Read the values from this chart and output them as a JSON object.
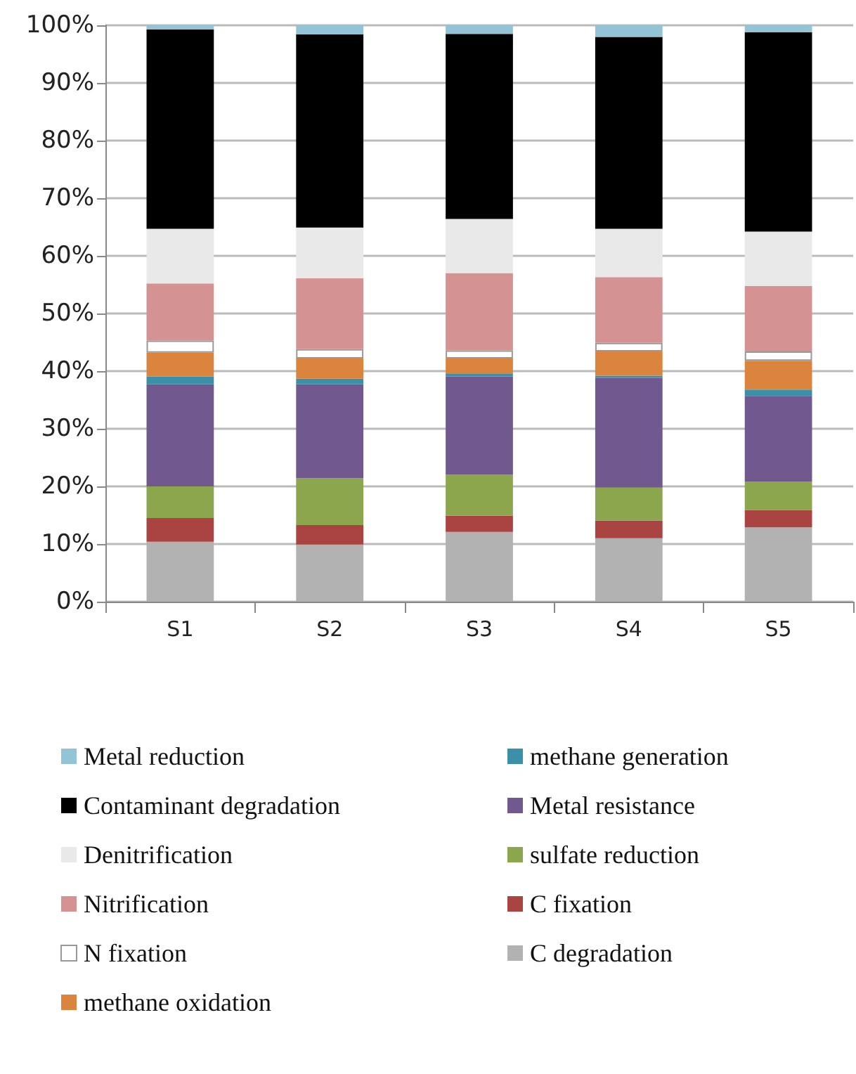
{
  "chart_data": {
    "type": "bar",
    "stacked": true,
    "categories": [
      "S1",
      "S2",
      "S3",
      "S4",
      "S5"
    ],
    "series": [
      {
        "name": "C degradation",
        "color": "#b2b2b2",
        "values": [
          10.4,
          9.9,
          12.1,
          11.0,
          12.9
        ]
      },
      {
        "name": "C fixation",
        "color": "#a94442",
        "values": [
          4.1,
          3.4,
          2.8,
          3.1,
          3.0
        ]
      },
      {
        "name": "sulfate reduction",
        "color": "#8ba64c",
        "values": [
          5.5,
          8.1,
          7.1,
          5.7,
          4.9
        ]
      },
      {
        "name": "Metal resistance",
        "color": "#71588f",
        "values": [
          17.7,
          16.3,
          17.1,
          19.0,
          14.9
        ]
      },
      {
        "name": "methane generation",
        "color": "#3c8fa8",
        "values": [
          1.4,
          1.0,
          0.4,
          0.4,
          1.1
        ]
      },
      {
        "name": "methane oxidation",
        "color": "#db843d",
        "values": [
          4.1,
          3.5,
          2.7,
          4.2,
          5.0
        ]
      },
      {
        "name": "N fixation",
        "color": "#ffffff",
        "values": [
          2.1,
          1.6,
          1.4,
          1.5,
          1.6
        ]
      },
      {
        "name": "Nitrification",
        "color": "#d49392",
        "values": [
          9.9,
          12.3,
          13.4,
          11.4,
          11.4
        ]
      },
      {
        "name": "Denitrification",
        "color": "#e9e9e9",
        "values": [
          9.5,
          8.8,
          9.4,
          8.4,
          9.4
        ]
      },
      {
        "name": "Contaminant degradation",
        "color": "#000000",
        "values": [
          34.6,
          33.5,
          32.1,
          33.3,
          34.6
        ]
      },
      {
        "name": "Metal reduction",
        "color": "#93c4d6",
        "values": [
          0.7,
          1.6,
          1.5,
          2.0,
          1.2
        ]
      }
    ],
    "ylim": [
      0,
      100
    ],
    "yticks": [
      {
        "value": 0,
        "label": "0%"
      },
      {
        "value": 10,
        "label": "10%"
      },
      {
        "value": 20,
        "label": "20%"
      },
      {
        "value": 30,
        "label": "30%"
      },
      {
        "value": 40,
        "label": "40%"
      },
      {
        "value": 50,
        "label": "50%"
      },
      {
        "value": 60,
        "label": "60%"
      },
      {
        "value": 70,
        "label": "70%"
      },
      {
        "value": 80,
        "label": "80%"
      },
      {
        "value": 90,
        "label": "90%"
      },
      {
        "value": 100,
        "label": "100%"
      }
    ],
    "grid": "y",
    "legend": "bottom"
  }
}
